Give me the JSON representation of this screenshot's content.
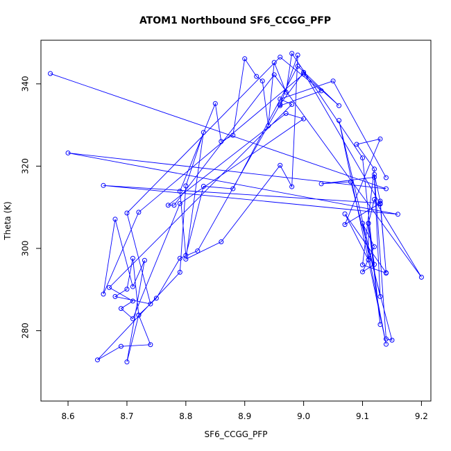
{
  "chart_data": {
    "type": "line",
    "title": "ATOM1 Northbound SF6_CCGG_PFP",
    "xlabel": "SF6_CCGG_PFP",
    "ylabel": "Theta (K)",
    "xlim": [
      8.554,
      9.216
    ],
    "ylim": [
      262.9,
      350.6
    ],
    "x_ticks": [
      8.6,
      8.7,
      8.8,
      8.9,
      9.0,
      9.1,
      9.2
    ],
    "y_ticks": [
      280,
      300,
      320,
      340
    ],
    "line_color": "#0000ff",
    "marker": "open-circle",
    "series": [
      {
        "name": "ATOM1 Northbound",
        "x": [
          8.57,
          9.14,
          8.6,
          9.16,
          8.66,
          9.13,
          9.07,
          9.13,
          9.09,
          9.12,
          9.1,
          9.14,
          9.13,
          9.12,
          9.14,
          9.15,
          9.08,
          9.03,
          9.12,
          9.13,
          9.06,
          9.14,
          9.1,
          9.12,
          9.1,
          9.12,
          9.11,
          9.13,
          9.1,
          8.98,
          8.97,
          8.95,
          8.94,
          8.93,
          8.92,
          8.9,
          8.88,
          8.86,
          8.85,
          8.79,
          8.8,
          8.83,
          8.88,
          8.99,
          9.06,
          9.0,
          8.72,
          8.66,
          8.68,
          8.71,
          8.73,
          8.7,
          8.72,
          8.74,
          8.69,
          8.65,
          8.79,
          8.8,
          8.83,
          8.8,
          8.86,
          8.96,
          8.98,
          8.99,
          8.96,
          9.03,
          8.96,
          8.7,
          8.74,
          8.68,
          8.7,
          8.71,
          8.72,
          8.75,
          8.79,
          8.82,
          8.96,
          9.0,
          9.13,
          9.14,
          9.07,
          9.11,
          9.11,
          9.12,
          9.2,
          8.95,
          8.78,
          8.77,
          8.97,
          9.0,
          8.79,
          8.71,
          8.69,
          8.71,
          8.67,
          8.98,
          8.96,
          9.05,
          9.14
        ],
        "y": [
          342.5,
          314.5,
          323.2,
          308.3,
          315.3,
          311.0,
          305.8,
          326.6,
          325.3,
          319.3,
          296.0,
          294.0,
          311.5,
          318.0,
          278.0,
          277.7,
          316.2,
          315.7,
          317.3,
          288.3,
          331.1,
          276.7,
          306.1,
          300.4,
          294.3,
          296.1,
          306.1,
          281.5,
          322.0,
          347.4,
          338.0,
          345.2,
          329.8,
          340.7,
          341.8,
          346.1,
          327.5,
          326.0,
          335.2,
          313.9,
          298.3,
          315.1,
          314.5,
          344.3,
          334.7,
          342.4,
          308.8,
          288.9,
          307.1,
          290.7,
          297.1,
          272.4,
          283.8,
          276.6,
          276.2,
          272.9,
          294.2,
          315.2,
          328.2,
          297.4,
          301.6,
          320.2,
          315.0,
          347.0,
          334.7,
          338.3,
          346.5,
          308.6,
          286.5,
          288.3,
          290.1,
          297.6,
          283.8,
          287.9,
          297.6,
          299.4,
          335.0,
          342.8,
          310.8,
          294.1,
          308.4,
          297.2,
          306.1,
          311.9,
          293.0,
          342.2,
          310.5,
          310.5,
          332.8,
          331.5,
          310.9,
          282.9,
          285.4,
          287.2,
          290.5,
          335.0,
          336.3,
          340.7,
          317.2
        ]
      }
    ]
  }
}
